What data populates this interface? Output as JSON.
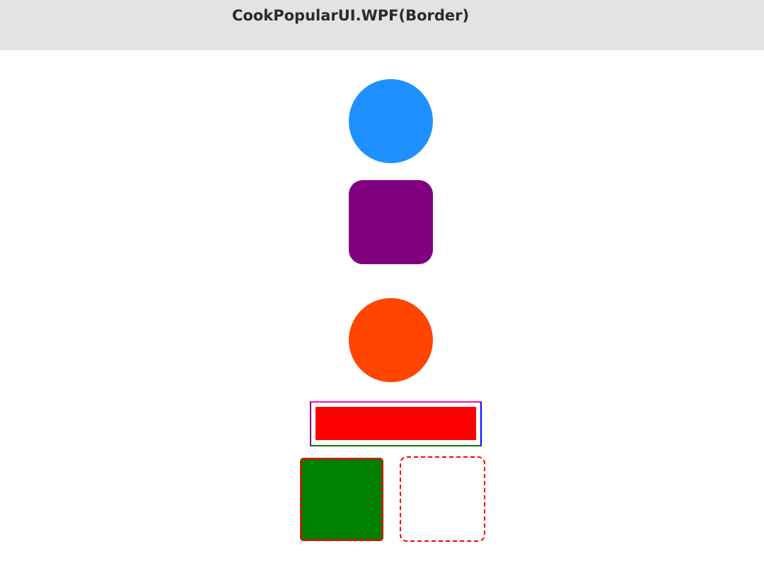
{
  "window": {
    "title": "CookPopularUI.WPF(Border)"
  },
  "colors": {
    "circle_blue": "#1e90ff",
    "rounded_square_purple": "#800080",
    "circle_orange": "#ff4500",
    "multi_border_top": "#ff1493",
    "multi_border_right": "#0000ff",
    "multi_border_bottom": "#008000",
    "multi_border_left": "#800080",
    "inner_fill_red": "#ff0000",
    "dashed_fill_green": "#008000",
    "dashed_stroke_red": "#ff0000"
  }
}
